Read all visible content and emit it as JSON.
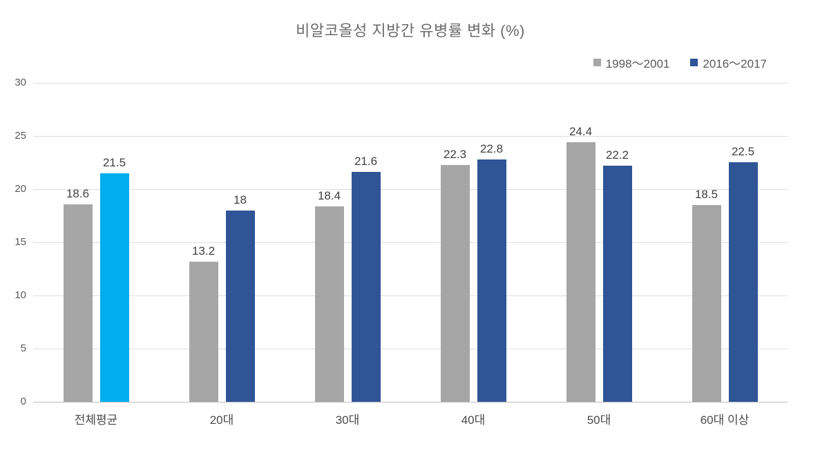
{
  "chart_data": {
    "type": "bar",
    "title": "비알코올성 지방간 유병률 변화 (%)",
    "xlabel": "",
    "ylabel": "",
    "categories": [
      "전체평균",
      "20대",
      "30대",
      "40대",
      "50대",
      "60대 이상"
    ],
    "series": [
      {
        "name": "1998～2001",
        "color": "#a6a6a6",
        "values": [
          18.6,
          13.2,
          18.4,
          22.3,
          24.4,
          18.5
        ],
        "labels": [
          "18.6",
          "13.2",
          "18.4",
          "22.3",
          "24.4",
          "18.5"
        ]
      },
      {
        "name": "2016～2017",
        "color": "#2f5597",
        "values": [
          21.5,
          18,
          21.6,
          22.8,
          22.2,
          22.5
        ],
        "labels": [
          "21.5",
          "18",
          "21.6",
          "22.8",
          "22.2",
          "22.5"
        ]
      }
    ],
    "highlight": {
      "series": 1,
      "index": 0,
      "color": "#00aeef",
      "note": "overall-average 2016~2017 bar shown in cyan"
    },
    "y_axis": {
      "min": 0,
      "max": 30,
      "step": 5,
      "ticks": [
        "0",
        "5",
        "10",
        "15",
        "20",
        "25",
        "30"
      ]
    },
    "grid": true,
    "legend_position": "top-right"
  },
  "colors": {
    "series1_gray": "#a6a6a6",
    "series2_blue": "#2f5597",
    "highlight_cyan": "#00aeef",
    "gridline": "#dedede",
    "axis_line": "#bdbdbd",
    "title_text": "#6b6b6b",
    "tick_text": "#595959",
    "value_text": "#3f3f3f"
  }
}
